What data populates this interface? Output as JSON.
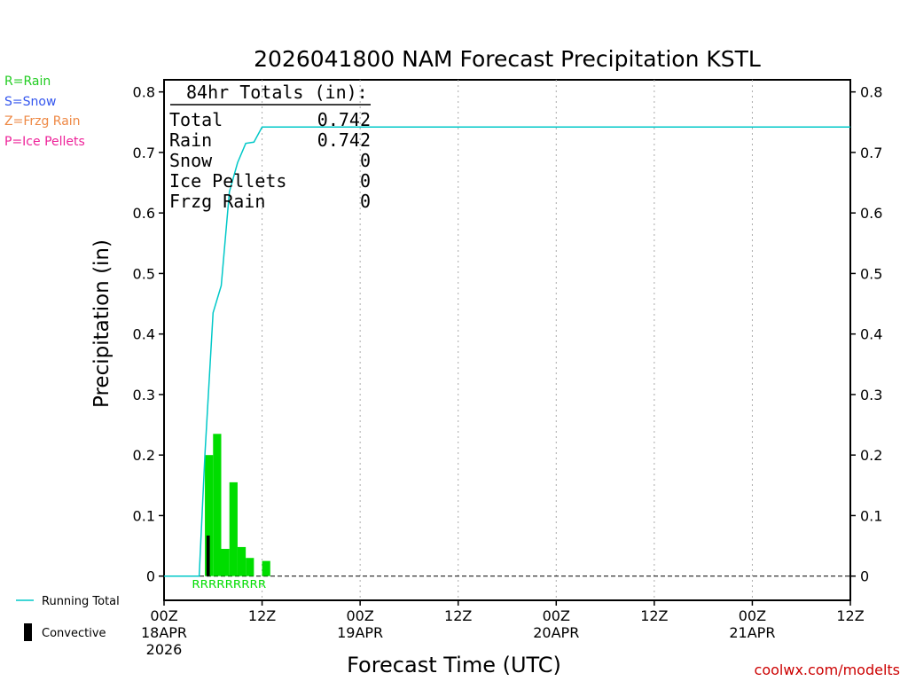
{
  "chart_data": {
    "type": "bar",
    "title": "2026041800 NAM Forecast Precipitation KSTL",
    "xlabel": "Forecast Time (UTC)",
    "ylabel": "Precipitation (in)",
    "ylim": [
      -0.04,
      0.82
    ],
    "xlim_hours": [
      0,
      84
    ],
    "yticks": [
      "0",
      "0.1",
      "0.2",
      "0.3",
      "0.4",
      "0.5",
      "0.6",
      "0.7",
      "0.8"
    ],
    "ytick_values": [
      0,
      0.1,
      0.2,
      0.3,
      0.4,
      0.5,
      0.6,
      0.7,
      0.8
    ],
    "xticks": [
      {
        "hour": 0,
        "line1": "00Z",
        "line2": "18APR",
        "line3": "2026"
      },
      {
        "hour": 12,
        "line1": "12Z",
        "line2": "",
        "line3": ""
      },
      {
        "hour": 24,
        "line1": "00Z",
        "line2": "19APR",
        "line3": ""
      },
      {
        "hour": 36,
        "line1": "12Z",
        "line2": "",
        "line3": ""
      },
      {
        "hour": 48,
        "line1": "00Z",
        "line2": "20APR",
        "line3": ""
      },
      {
        "hour": 60,
        "line1": "12Z",
        "line2": "",
        "line3": ""
      },
      {
        "hour": 72,
        "line1": "00Z",
        "line2": "21APR",
        "line3": ""
      },
      {
        "hour": 84,
        "line1": "12Z",
        "line2": "",
        "line3": ""
      }
    ],
    "grid_hours": [
      12,
      24,
      36,
      48,
      60,
      72
    ],
    "series": [
      {
        "name": "Rain",
        "color": "#00dd00",
        "bars": [
          {
            "start": 5,
            "end": 6,
            "value": 0.2
          },
          {
            "start": 6,
            "end": 7,
            "value": 0.235
          },
          {
            "start": 7,
            "end": 8,
            "value": 0.045
          },
          {
            "start": 8,
            "end": 9,
            "value": 0.155
          },
          {
            "start": 9,
            "end": 10,
            "value": 0.048
          },
          {
            "start": 10,
            "end": 11,
            "value": 0.03
          },
          {
            "start": 12,
            "end": 13,
            "value": 0.025
          }
        ]
      },
      {
        "name": "Convective",
        "color": "#000000",
        "bars": [
          {
            "start": 5.2,
            "end": 5.6,
            "value": 0.067
          }
        ]
      },
      {
        "name": "Running Total",
        "color": "#00c8c8",
        "x": [
          0,
          4.3,
          5,
          6,
          7,
          8,
          9,
          10,
          11,
          12,
          13,
          84
        ],
        "y": [
          0,
          0,
          0.2,
          0.435,
          0.48,
          0.635,
          0.683,
          0.715,
          0.717,
          0.742,
          0.742,
          0.742
        ]
      }
    ],
    "ptype_letters": "RRRRRRRRR",
    "ptype_letters_range_hours": [
      3.4,
      12.5
    ],
    "ptype_letters_color": "#00dd00",
    "legend_position": "left"
  },
  "totals": {
    "header": "84hr Totals (in):",
    "rows": [
      {
        "label": "Total",
        "value": "0.742"
      },
      {
        "label": "Rain",
        "value": "0.742"
      },
      {
        "label": "Snow",
        "value": "0"
      },
      {
        "label": "Ice Pellets",
        "value": "0"
      },
      {
        "label": "Frzg Rain",
        "value": "0"
      }
    ]
  },
  "ptype_legend": [
    {
      "text": "R=Rain",
      "color": "#22cc22"
    },
    {
      "text": "S=Snow",
      "color": "#3355ee"
    },
    {
      "text": "Z=Frzg Rain",
      "color": "#ee8844"
    },
    {
      "text": "P=Ice Pellets",
      "color": "#ee2299"
    }
  ],
  "series_legend": {
    "running_total": "Running Total",
    "convective": "Convective"
  },
  "credit": "coolwx.com/modelts",
  "colors": {
    "credit": "#cc0000",
    "axes": "#000000",
    "grid": "#aaaaaa"
  }
}
